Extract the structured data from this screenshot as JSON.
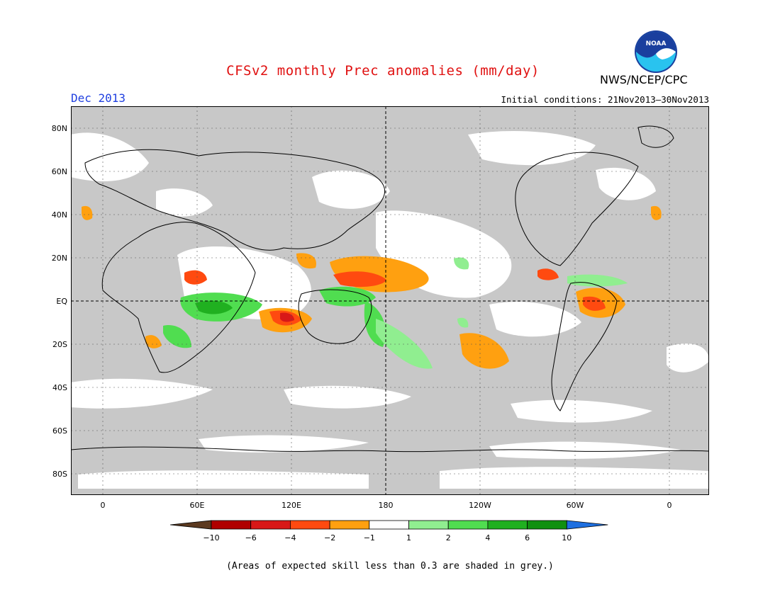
{
  "title": "CFSv2 monthly Prec anomalies (mm/day)",
  "agency": "NWS/NCEP/CPC",
  "logo_text": "NOAA",
  "month": "Dec 2013",
  "initial_conditions": "Initial conditions: 21Nov2013–30Nov2013",
  "footnote": "(Areas of expected skill less than 0.3 are shaded in grey.)",
  "lat_labels": [
    "80N",
    "60N",
    "40N",
    "20N",
    "EQ",
    "20S",
    "40S",
    "60S",
    "80S"
  ],
  "lon_labels": [
    "0",
    "60E",
    "120E",
    "180",
    "120W",
    "60W",
    "0"
  ],
  "colorbar": {
    "labels": [
      "−10",
      "−6",
      "−4",
      "−2",
      "−1",
      "1",
      "2",
      "4",
      "6",
      "10"
    ],
    "colors": [
      "#5c3a20",
      "#b00000",
      "#d81818",
      "#ff4a10",
      "#ffa010",
      "#ffffff",
      "#90ee90",
      "#50dd50",
      "#20b020",
      "#109010",
      "#1e6fe0"
    ]
  },
  "colors": {
    "ocean_grey": "#c8c8c8",
    "title_red": "#e01010",
    "month_blue": "#2040e0"
  }
}
